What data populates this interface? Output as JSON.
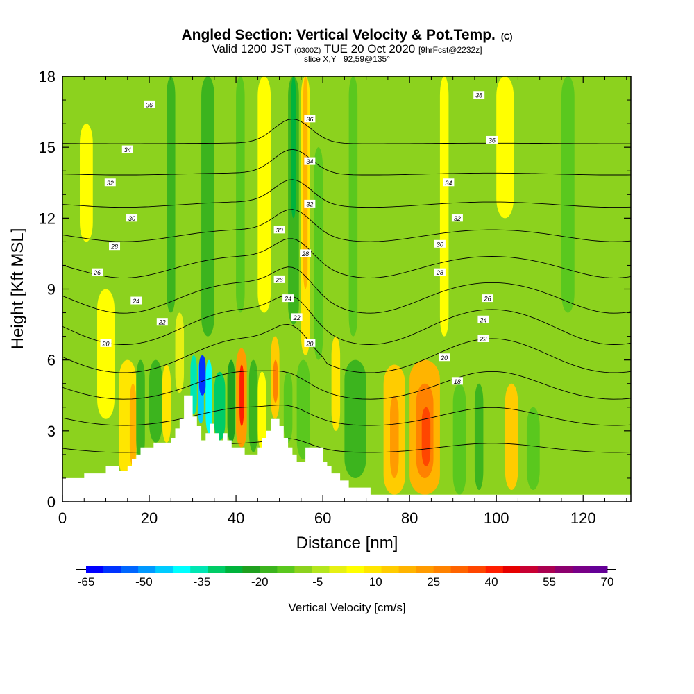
{
  "chart_data": {
    "type": "heatmap",
    "title": "Angled Section: Vertical Velocity & Pot.Temp.",
    "title_mark": "(C)",
    "subtitle": {
      "valid": "Valid 1200 JST",
      "utc": "(0300Z)",
      "date": "TUE 20 Oct 2020",
      "fcst": "[9hrFcst@2232z]"
    },
    "slice_note": "slice X,Y= 92,59@135°",
    "xlabel": "Distance [nm]",
    "ylabel": "Height [Kft MSL]",
    "xlim": [
      0,
      131
    ],
    "ylim": [
      0,
      18
    ],
    "x_ticks": [
      0,
      20,
      40,
      60,
      80,
      100,
      120
    ],
    "y_ticks": [
      0,
      3,
      6,
      9,
      12,
      15,
      18
    ],
    "colorbar": {
      "label": "Vertical Velocity [cm/s]",
      "min": -65,
      "max": 70,
      "step": 5,
      "tick_labels": [
        "-65",
        "-50",
        "-35",
        "-20",
        "-5",
        "10",
        "25",
        "40",
        "55",
        "70"
      ],
      "colors": [
        "#0000ff",
        "#0033ff",
        "#0066ff",
        "#0099ff",
        "#00ccff",
        "#00ffff",
        "#00e6b3",
        "#00cc66",
        "#00b33c",
        "#1fa01f",
        "#3cb41e",
        "#5ac81e",
        "#8cd21e",
        "#b4e61e",
        "#e6f014",
        "#ffff00",
        "#ffe600",
        "#ffcc00",
        "#ffb400",
        "#ff9b00",
        "#ff8200",
        "#ff6400",
        "#ff4600",
        "#ff1e00",
        "#e60000",
        "#c80032",
        "#aa0050",
        "#8c006e",
        "#780087",
        "#640096"
      ]
    },
    "terrain": [
      [
        0,
        1.0
      ],
      [
        5,
        1.0
      ],
      [
        5,
        1.2
      ],
      [
        10,
        1.2
      ],
      [
        10,
        1.5
      ],
      [
        13,
        1.5
      ],
      [
        13,
        1.3
      ],
      [
        15,
        1.3
      ],
      [
        15,
        1.5
      ],
      [
        16,
        1.5
      ],
      [
        16,
        1.8
      ],
      [
        17,
        1.8
      ],
      [
        17,
        2.0
      ],
      [
        18,
        2.0
      ],
      [
        18,
        2.3
      ],
      [
        21,
        2.3
      ],
      [
        21,
        2.5
      ],
      [
        25,
        2.5
      ],
      [
        25,
        2.7
      ],
      [
        26,
        2.7
      ],
      [
        26,
        3.1
      ],
      [
        27,
        3.1
      ],
      [
        27,
        3.5
      ],
      [
        28,
        3.5
      ],
      [
        28,
        4.5
      ],
      [
        30,
        4.5
      ],
      [
        30,
        3.6
      ],
      [
        31,
        3.6
      ],
      [
        31,
        3.2
      ],
      [
        32,
        3.2
      ],
      [
        32,
        2.6
      ],
      [
        33,
        2.6
      ],
      [
        33,
        2.9
      ],
      [
        34,
        2.9
      ],
      [
        34,
        3.3
      ],
      [
        35,
        3.3
      ],
      [
        35,
        2.9
      ],
      [
        36,
        2.9
      ],
      [
        36,
        2.6
      ],
      [
        37,
        2.6
      ],
      [
        37,
        2.9
      ],
      [
        38,
        2.9
      ],
      [
        38,
        2.6
      ],
      [
        39,
        2.6
      ],
      [
        39,
        2.3
      ],
      [
        42,
        2.3
      ],
      [
        42,
        2.0
      ],
      [
        45,
        2.0
      ],
      [
        45,
        2.3
      ],
      [
        46,
        2.3
      ],
      [
        46,
        2.7
      ],
      [
        47,
        2.7
      ],
      [
        47,
        3.0
      ],
      [
        48,
        3.0
      ],
      [
        48,
        3.5
      ],
      [
        50,
        3.5
      ],
      [
        50,
        3.2
      ],
      [
        51,
        3.2
      ],
      [
        51,
        2.7
      ],
      [
        52,
        2.7
      ],
      [
        52,
        2.3
      ],
      [
        53,
        2.3
      ],
      [
        53,
        2.0
      ],
      [
        54,
        2.0
      ],
      [
        54,
        1.7
      ],
      [
        56,
        1.7
      ],
      [
        56,
        2.3
      ],
      [
        60,
        2.3
      ],
      [
        60,
        1.7
      ],
      [
        61,
        1.7
      ],
      [
        61,
        1.5
      ],
      [
        62,
        1.5
      ],
      [
        62,
        1.2
      ],
      [
        64,
        1.2
      ],
      [
        64,
        0.9
      ],
      [
        66,
        0.9
      ],
      [
        66,
        0.6
      ],
      [
        71,
        0.6
      ],
      [
        71,
        0.3
      ],
      [
        131,
        0.3
      ],
      [
        131,
        0
      ]
    ],
    "contour_levels": [
      18,
      20,
      22,
      24,
      26,
      28,
      30,
      32,
      34,
      36,
      38
    ],
    "contour_labels": [
      {
        "text": "36",
        "x": 20,
        "y": 16.8
      },
      {
        "text": "34",
        "x": 15,
        "y": 14.9
      },
      {
        "text": "32",
        "x": 11,
        "y": 13.5
      },
      {
        "text": "30",
        "x": 16,
        "y": 12.0
      },
      {
        "text": "28",
        "x": 12,
        "y": 10.8
      },
      {
        "text": "26",
        "x": 8,
        "y": 9.7
      },
      {
        "text": "24",
        "x": 17,
        "y": 8.5
      },
      {
        "text": "22",
        "x": 23,
        "y": 7.6
      },
      {
        "text": "20",
        "x": 10,
        "y": 6.7
      },
      {
        "text": "30",
        "x": 50,
        "y": 11.5
      },
      {
        "text": "26",
        "x": 50,
        "y": 9.4
      },
      {
        "text": "24",
        "x": 52,
        "y": 8.6
      },
      {
        "text": "22",
        "x": 54,
        "y": 7.8
      },
      {
        "text": "20",
        "x": 57,
        "y": 6.7
      },
      {
        "text": "36",
        "x": 57,
        "y": 16.2
      },
      {
        "text": "34",
        "x": 57,
        "y": 14.4
      },
      {
        "text": "32",
        "x": 57,
        "y": 12.6
      },
      {
        "text": "28",
        "x": 56,
        "y": 10.5
      },
      {
        "text": "38",
        "x": 96,
        "y": 17.2
      },
      {
        "text": "36",
        "x": 99,
        "y": 15.3
      },
      {
        "text": "34",
        "x": 89,
        "y": 13.5
      },
      {
        "text": "32",
        "x": 91,
        "y": 12.0
      },
      {
        "text": "30",
        "x": 87,
        "y": 10.9
      },
      {
        "text": "28",
        "x": 87,
        "y": 9.7
      },
      {
        "text": "26",
        "x": 98,
        "y": 8.6
      },
      {
        "text": "24",
        "x": 97,
        "y": 7.7
      },
      {
        "text": "22",
        "x": 97,
        "y": 6.9
      },
      {
        "text": "20",
        "x": 88,
        "y": 6.1
      },
      {
        "text": "18",
        "x": 91,
        "y": 5.1
      }
    ],
    "cells": [
      {
        "x": [
          8,
          12
        ],
        "y": [
          3.5,
          9
        ],
        "v": 10
      },
      {
        "x": [
          13,
          17
        ],
        "y": [
          1,
          6
        ],
        "v": 15
      },
      {
        "x": [
          15.5,
          17
        ],
        "y": [
          1.5,
          5
        ],
        "v": 25
      },
      {
        "x": [
          17,
          19
        ],
        "y": [
          1.8,
          6
        ],
        "v": -15
      },
      {
        "x": [
          20,
          23
        ],
        "y": [
          2.5,
          6
        ],
        "v": -15
      },
      {
        "x": [
          23,
          25
        ],
        "y": [
          2.5,
          5.8
        ],
        "v": 15
      },
      {
        "x": [
          24,
          26
        ],
        "y": [
          8,
          18
        ],
        "v": -15
      },
      {
        "x": [
          26,
          28
        ],
        "y": [
          4.6,
          8
        ],
        "v": 5
      },
      {
        "x": [
          29.5,
          31
        ],
        "y": [
          3.7,
          6.2
        ],
        "v": -35
      },
      {
        "x": [
          31.2,
          32.6
        ],
        "y": [
          3.3,
          6
        ],
        "v": -45
      },
      {
        "x": [
          33,
          34.5
        ],
        "y": [
          2.9,
          6
        ],
        "v": -40
      },
      {
        "x": [
          35,
          37.5
        ],
        "y": [
          2.6,
          5.5
        ],
        "v": -30
      },
      {
        "x": [
          31.5,
          33
        ],
        "y": [
          4.5,
          6.2
        ],
        "v": -60
      },
      {
        "x": [
          38,
          39.8
        ],
        "y": [
          2.5,
          6
        ],
        "v": -20
      },
      {
        "x": [
          40,
          42.5
        ],
        "y": [
          2.3,
          6.5
        ],
        "v": 30
      },
      {
        "x": [
          40.8,
          41.8
        ],
        "y": [
          3.2,
          5.8
        ],
        "v": 50
      },
      {
        "x": [
          43,
          45
        ],
        "y": [
          2.1,
          6
        ],
        "v": -15
      },
      {
        "x": [
          45,
          47
        ],
        "y": [
          2.2,
          5.5
        ],
        "v": 10
      },
      {
        "x": [
          48,
          50
        ],
        "y": [
          3.5,
          7
        ],
        "v": 20
      },
      {
        "x": [
          48.6,
          49.6
        ],
        "y": [
          4.2,
          6
        ],
        "v": 35
      },
      {
        "x": [
          51,
          53
        ],
        "y": [
          2.5,
          5.5
        ],
        "v": -10
      },
      {
        "x": [
          54,
          57
        ],
        "y": [
          1.8,
          6
        ],
        "v": -10
      },
      {
        "x": [
          55,
          57
        ],
        "y": [
          6.2,
          18
        ],
        "v": 15
      },
      {
        "x": [
          52,
          54.5
        ],
        "y": [
          7.5,
          18
        ],
        "v": -12
      },
      {
        "x": [
          52.7,
          53.8
        ],
        "y": [
          12,
          18
        ],
        "v": -25
      },
      {
        "x": [
          55.5,
          56.5
        ],
        "y": [
          9,
          18
        ],
        "v": 25
      },
      {
        "x": [
          32,
          35
        ],
        "y": [
          7,
          18
        ],
        "v": -15
      },
      {
        "x": [
          40,
          42
        ],
        "y": [
          8,
          18
        ],
        "v": -10
      },
      {
        "x": [
          45,
          48
        ],
        "y": [
          8,
          18
        ],
        "v": 10
      },
      {
        "x": [
          58,
          60
        ],
        "y": [
          6,
          15
        ],
        "v": -10
      },
      {
        "x": [
          62,
          64
        ],
        "y": [
          3,
          7
        ],
        "v": 15
      },
      {
        "x": [
          65,
          70
        ],
        "y": [
          1,
          6
        ],
        "v": -15
      },
      {
        "x": [
          66,
          68
        ],
        "y": [
          7,
          18
        ],
        "v": -10
      },
      {
        "x": [
          72,
          74
        ],
        "y": [
          5,
          18
        ],
        "v": -5
      },
      {
        "x": [
          74,
          79
        ],
        "y": [
          0.3,
          5.8
        ],
        "v": 20
      },
      {
        "x": [
          75.5,
          77.5
        ],
        "y": [
          1,
          4.5
        ],
        "v": 30
      },
      {
        "x": [
          80,
          87
        ],
        "y": [
          0.3,
          6
        ],
        "v": 25
      },
      {
        "x": [
          81.5,
          85.5
        ],
        "y": [
          1,
          5
        ],
        "v": 35
      },
      {
        "x": [
          82.8,
          84.8
        ],
        "y": [
          1.5,
          4
        ],
        "v": 45
      },
      {
        "x": [
          87,
          89
        ],
        "y": [
          7,
          18
        ],
        "v": 10
      },
      {
        "x": [
          90,
          93
        ],
        "y": [
          0.3,
          5
        ],
        "v": -10
      },
      {
        "x": [
          95,
          97
        ],
        "y": [
          0.5,
          5
        ],
        "v": -12
      },
      {
        "x": [
          102,
          105
        ],
        "y": [
          0.5,
          5
        ],
        "v": 20
      },
      {
        "x": [
          107,
          110
        ],
        "y": [
          0.5,
          4
        ],
        "v": -10
      },
      {
        "x": [
          115,
          118
        ],
        "y": [
          8,
          18
        ],
        "v": -10
      },
      {
        "x": [
          120,
          123
        ],
        "y": [
          1,
          4
        ],
        "v": -5
      },
      {
        "x": [
          100,
          104
        ],
        "y": [
          12,
          18
        ],
        "v": 10
      },
      {
        "x": [
          4,
          7
        ],
        "y": [
          11,
          16
        ],
        "v": 10
      }
    ]
  }
}
